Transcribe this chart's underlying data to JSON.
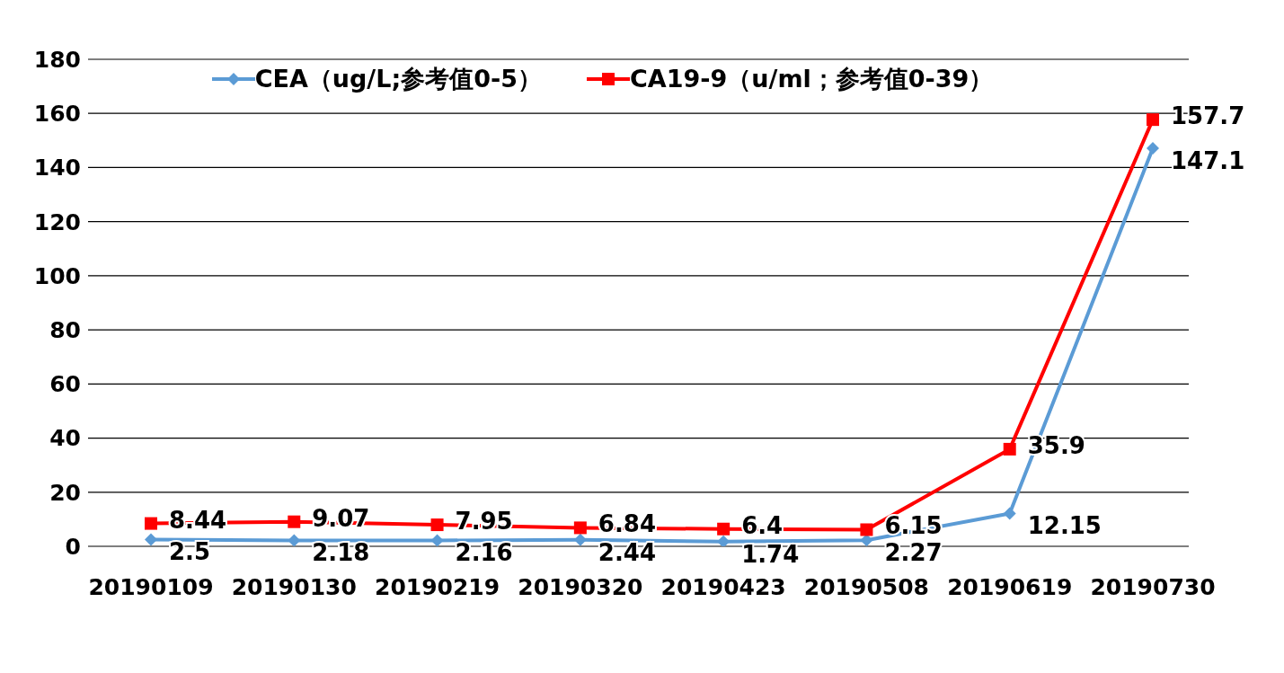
{
  "chart_data": {
    "type": "line",
    "categories": [
      "20190109",
      "20190130",
      "20190219",
      "20190320",
      "20190423",
      "20190508",
      "20190619",
      "20190730"
    ],
    "series": [
      {
        "name": "CEA（ug/L;参考值0-5）",
        "color": "#5b9bd5",
        "marker": "diamond",
        "values": [
          2.5,
          2.18,
          2.16,
          2.44,
          1.74,
          2.27,
          12.15,
          147.1
        ]
      },
      {
        "name": "CA19-9（u/ml；参考值0-39）",
        "color": "#ff0000",
        "marker": "square",
        "values": [
          8.44,
          9.07,
          7.95,
          6.84,
          6.4,
          6.15,
          35.9,
          157.7
        ]
      }
    ],
    "ylim": [
      0,
      180
    ],
    "yticks": [
      0,
      20,
      40,
      60,
      80,
      100,
      120,
      140,
      160,
      180
    ],
    "grid": "y",
    "legend": "top",
    "data_labels": true
  }
}
